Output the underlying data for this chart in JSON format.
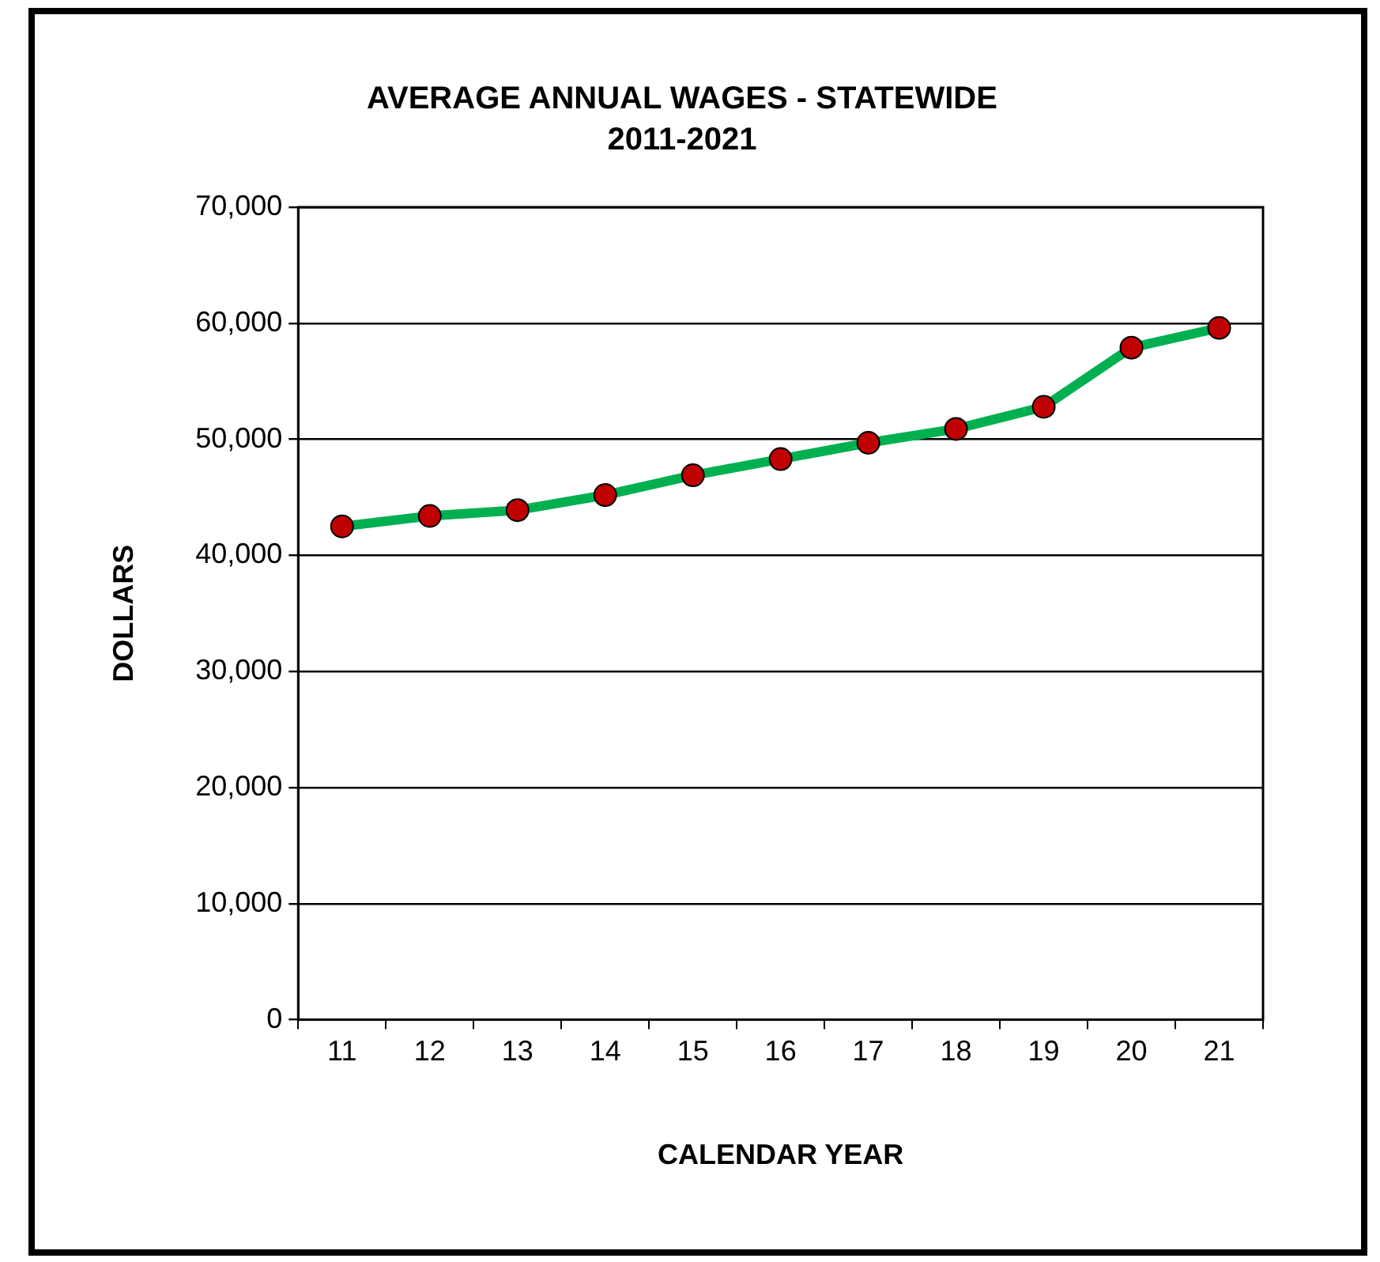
{
  "chart_data": {
    "type": "line",
    "title": "AVERAGE ANNUAL WAGES - STATEWIDE",
    "subtitle": "2011-2021",
    "xlabel": "CALENDAR YEAR",
    "ylabel": "DOLLARS",
    "categories": [
      "11",
      "12",
      "13",
      "14",
      "15",
      "16",
      "17",
      "18",
      "19",
      "20",
      "21"
    ],
    "series": [
      {
        "color": "#00b050",
        "values": [
          42500,
          43400,
          43900,
          45200,
          46900,
          48300,
          49700,
          50900,
          52800,
          57900,
          59600
        ]
      }
    ],
    "ylim": [
      0,
      70000
    ],
    "yticks": [
      {
        "value": 0,
        "label": "0"
      },
      {
        "value": 10000,
        "label": "10,000"
      },
      {
        "value": 20000,
        "label": "20,000"
      },
      {
        "value": 30000,
        "label": "30,000"
      },
      {
        "value": 40000,
        "label": "40,000"
      },
      {
        "value": 50000,
        "label": "50,000"
      },
      {
        "value": 60000,
        "label": "60,000"
      },
      {
        "value": 70000,
        "label": "70,000"
      }
    ],
    "grid": "y",
    "legend": false,
    "marker": "circle",
    "line_style": "solid"
  }
}
